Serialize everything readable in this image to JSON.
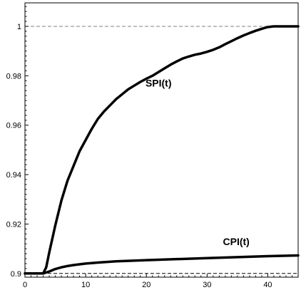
{
  "chart_data": {
    "type": "line",
    "title": "",
    "xlabel": "",
    "ylabel": "",
    "xlim": [
      0,
      45
    ],
    "ylim": [
      0.8985,
      1.0095
    ],
    "grid": false,
    "x_ticks": [
      "0",
      "10",
      "20",
      "30",
      "40"
    ],
    "y_ticks": [
      "0.9",
      "0.92",
      "0.94",
      "0.96",
      "0.98",
      "1"
    ],
    "reference_lines": [
      {
        "y": 1.0,
        "style": "dashed",
        "color": "#808080"
      },
      {
        "y": 0.9,
        "style": "dashed",
        "color": "#000000"
      }
    ],
    "annotations": [
      {
        "text": "SPI(t)",
        "x": 22.0,
        "y": 0.9756
      },
      {
        "text": "CPI(t)",
        "x": 34.8,
        "y": 0.9115
      }
    ],
    "series": [
      {
        "name": "SPI(t)",
        "color": "#000000",
        "points": [
          [
            0,
            0.9
          ],
          [
            3,
            0.9
          ],
          [
            3.5,
            0.9025
          ],
          [
            4,
            0.9085
          ],
          [
            5,
            0.9195
          ],
          [
            6,
            0.9295
          ],
          [
            7,
            0.9375
          ],
          [
            8,
            0.9435
          ],
          [
            9,
            0.9495
          ],
          [
            10,
            0.954
          ],
          [
            11,
            0.9585
          ],
          [
            12,
            0.9625
          ],
          [
            13,
            0.9655
          ],
          [
            14,
            0.968
          ],
          [
            15,
            0.9705
          ],
          [
            16,
            0.9725
          ],
          [
            17,
            0.9745
          ],
          [
            18,
            0.976
          ],
          [
            19,
            0.9775
          ],
          [
            20,
            0.9788
          ],
          [
            21,
            0.98
          ],
          [
            22,
            0.9815
          ],
          [
            23,
            0.983
          ],
          [
            24,
            0.9845
          ],
          [
            25,
            0.9858
          ],
          [
            26,
            0.987
          ],
          [
            27,
            0.9878
          ],
          [
            28,
            0.9885
          ],
          [
            29,
            0.989
          ],
          [
            30,
            0.9897
          ],
          [
            31,
            0.9905
          ],
          [
            32,
            0.9915
          ],
          [
            33,
            0.9928
          ],
          [
            34,
            0.994
          ],
          [
            35,
            0.9952
          ],
          [
            36,
            0.9963
          ],
          [
            37,
            0.9973
          ],
          [
            38,
            0.9982
          ],
          [
            39,
            0.999
          ],
          [
            40,
            0.9997
          ],
          [
            41,
            1.0
          ],
          [
            45,
            1.0
          ]
        ]
      },
      {
        "name": "CPI(t)",
        "color": "#000000",
        "points": [
          [
            0,
            0.9
          ],
          [
            3,
            0.9
          ],
          [
            4,
            0.9008
          ],
          [
            5,
            0.9018
          ],
          [
            6,
            0.9025
          ],
          [
            7,
            0.903
          ],
          [
            8,
            0.9034
          ],
          [
            10,
            0.904
          ],
          [
            12,
            0.9044
          ],
          [
            15,
            0.9049
          ],
          [
            20,
            0.9054
          ],
          [
            25,
            0.9058
          ],
          [
            30,
            0.9062
          ],
          [
            35,
            0.9066
          ],
          [
            40,
            0.907
          ],
          [
            45,
            0.9073
          ]
        ]
      }
    ]
  }
}
